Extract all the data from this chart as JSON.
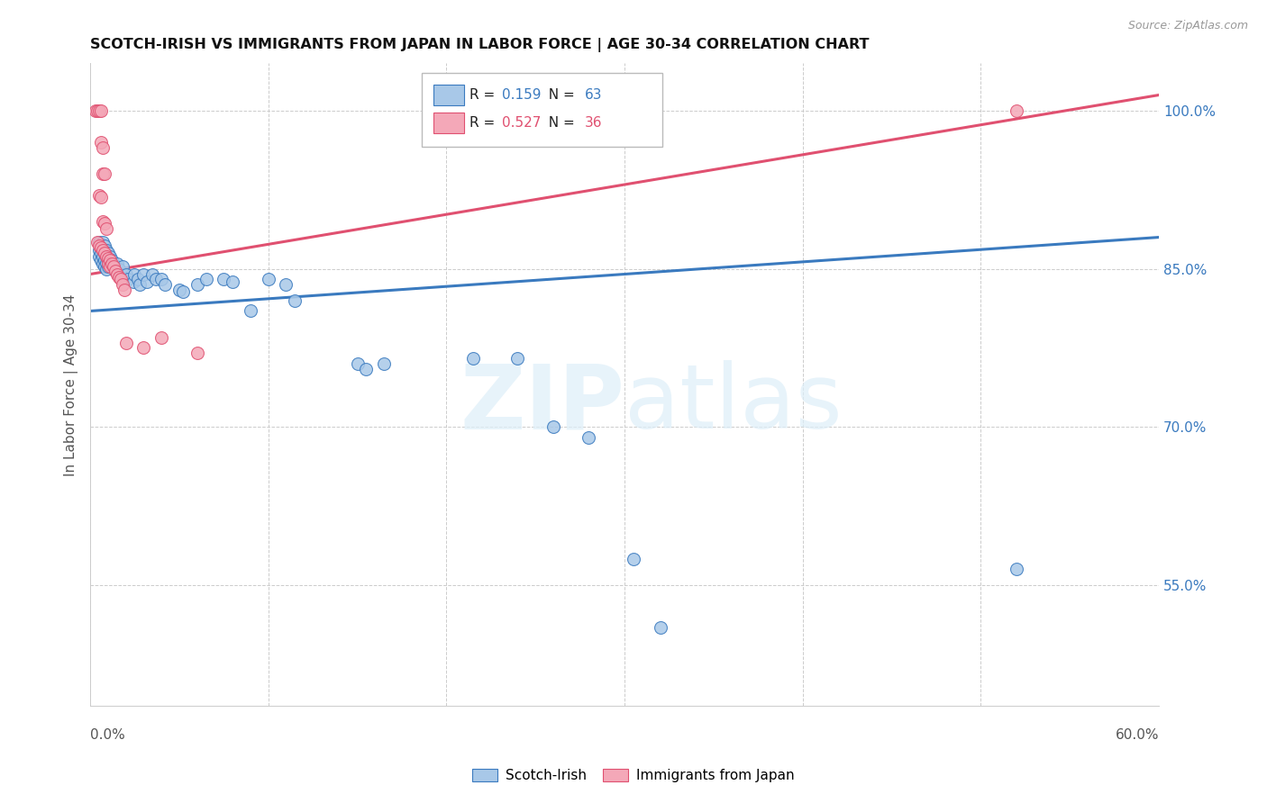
{
  "title": "SCOTCH-IRISH VS IMMIGRANTS FROM JAPAN IN LABOR FORCE | AGE 30-34 CORRELATION CHART",
  "source": "Source: ZipAtlas.com",
  "ylabel": "In Labor Force | Age 30-34",
  "y_ticks": [
    0.55,
    0.7,
    0.85,
    1.0
  ],
  "y_tick_labels": [
    "55.0%",
    "70.0%",
    "85.0%",
    "100.0%"
  ],
  "xmin": 0.0,
  "xmax": 0.6,
  "ymin": 0.435,
  "ymax": 1.045,
  "blue_R": 0.159,
  "blue_N": 63,
  "pink_R": 0.527,
  "pink_N": 36,
  "blue_color": "#a8c8e8",
  "pink_color": "#f4a8b8",
  "blue_line_color": "#3a7abf",
  "pink_line_color": "#e05070",
  "scatter_blue": [
    [
      0.005,
      0.875
    ],
    [
      0.005,
      0.868
    ],
    [
      0.005,
      0.862
    ],
    [
      0.006,
      0.87
    ],
    [
      0.006,
      0.865
    ],
    [
      0.006,
      0.858
    ],
    [
      0.007,
      0.875
    ],
    [
      0.007,
      0.868
    ],
    [
      0.007,
      0.862
    ],
    [
      0.007,
      0.855
    ],
    [
      0.008,
      0.872
    ],
    [
      0.008,
      0.865
    ],
    [
      0.008,
      0.858
    ],
    [
      0.008,
      0.852
    ],
    [
      0.009,
      0.868
    ],
    [
      0.009,
      0.862
    ],
    [
      0.009,
      0.856
    ],
    [
      0.009,
      0.85
    ],
    [
      0.01,
      0.865
    ],
    [
      0.01,
      0.858
    ],
    [
      0.01,
      0.852
    ],
    [
      0.011,
      0.862
    ],
    [
      0.011,
      0.855
    ],
    [
      0.012,
      0.858
    ],
    [
      0.012,
      0.852
    ],
    [
      0.013,
      0.855
    ],
    [
      0.014,
      0.848
    ],
    [
      0.015,
      0.855
    ],
    [
      0.016,
      0.85
    ],
    [
      0.017,
      0.845
    ],
    [
      0.018,
      0.852
    ],
    [
      0.02,
      0.845
    ],
    [
      0.021,
      0.84
    ],
    [
      0.024,
      0.838
    ],
    [
      0.025,
      0.845
    ],
    [
      0.027,
      0.84
    ],
    [
      0.028,
      0.835
    ],
    [
      0.03,
      0.845
    ],
    [
      0.032,
      0.838
    ],
    [
      0.035,
      0.845
    ],
    [
      0.037,
      0.84
    ],
    [
      0.04,
      0.84
    ],
    [
      0.042,
      0.835
    ],
    [
      0.05,
      0.83
    ],
    [
      0.052,
      0.828
    ],
    [
      0.06,
      0.835
    ],
    [
      0.065,
      0.84
    ],
    [
      0.075,
      0.84
    ],
    [
      0.08,
      0.838
    ],
    [
      0.09,
      0.81
    ],
    [
      0.1,
      0.84
    ],
    [
      0.11,
      0.835
    ],
    [
      0.115,
      0.82
    ],
    [
      0.15,
      0.76
    ],
    [
      0.155,
      0.755
    ],
    [
      0.165,
      0.76
    ],
    [
      0.215,
      0.765
    ],
    [
      0.24,
      0.765
    ],
    [
      0.26,
      0.7
    ],
    [
      0.28,
      0.69
    ],
    [
      0.305,
      0.575
    ],
    [
      0.32,
      0.51
    ],
    [
      0.52,
      0.565
    ]
  ],
  "scatter_pink": [
    [
      0.003,
      1.0
    ],
    [
      0.004,
      1.0
    ],
    [
      0.005,
      1.0
    ],
    [
      0.006,
      1.0
    ],
    [
      0.006,
      0.97
    ],
    [
      0.007,
      0.965
    ],
    [
      0.007,
      0.94
    ],
    [
      0.008,
      0.94
    ],
    [
      0.005,
      0.92
    ],
    [
      0.006,
      0.918
    ],
    [
      0.007,
      0.895
    ],
    [
      0.008,
      0.893
    ],
    [
      0.009,
      0.888
    ],
    [
      0.004,
      0.875
    ],
    [
      0.005,
      0.872
    ],
    [
      0.006,
      0.87
    ],
    [
      0.007,
      0.868
    ],
    [
      0.008,
      0.865
    ],
    [
      0.009,
      0.862
    ],
    [
      0.01,
      0.86
    ],
    [
      0.01,
      0.855
    ],
    [
      0.011,
      0.858
    ],
    [
      0.011,
      0.852
    ],
    [
      0.012,
      0.855
    ],
    [
      0.013,
      0.852
    ],
    [
      0.014,
      0.848
    ],
    [
      0.015,
      0.845
    ],
    [
      0.016,
      0.842
    ],
    [
      0.017,
      0.84
    ],
    [
      0.018,
      0.835
    ],
    [
      0.019,
      0.83
    ],
    [
      0.02,
      0.78
    ],
    [
      0.03,
      0.775
    ],
    [
      0.04,
      0.785
    ],
    [
      0.06,
      0.77
    ],
    [
      0.52,
      1.0
    ]
  ],
  "blue_trend_x": [
    0.0,
    0.6
  ],
  "blue_trend_y": [
    0.81,
    0.88
  ],
  "pink_trend_x": [
    0.0,
    0.6
  ],
  "pink_trend_y": [
    0.845,
    1.015
  ],
  "watermark_zip": "ZIP",
  "watermark_atlas": "atlas",
  "legend_blue_label": "Scotch-Irish",
  "legend_pink_label": "Immigrants from Japan"
}
